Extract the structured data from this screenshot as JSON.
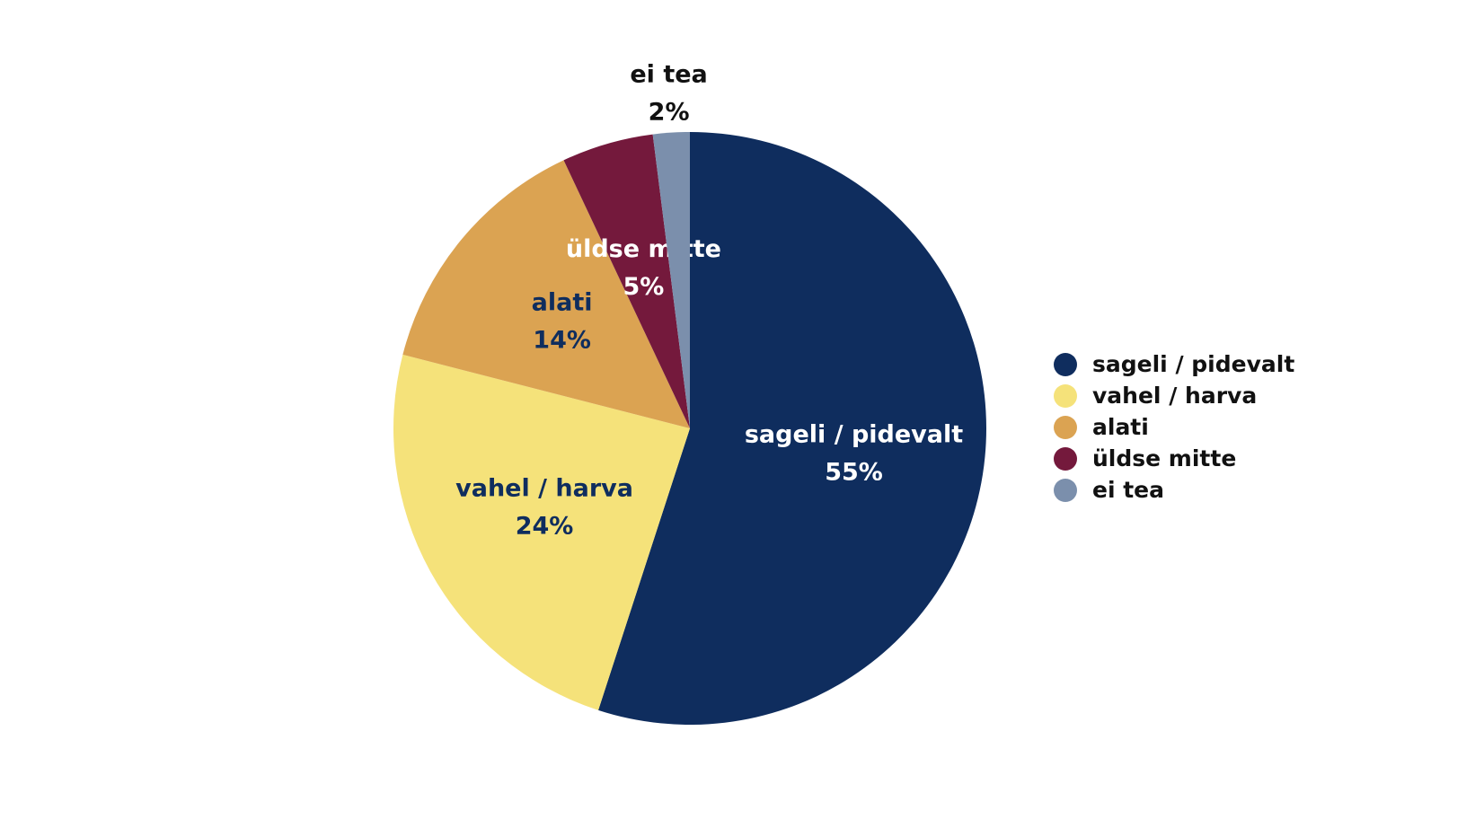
{
  "chart_data": {
    "type": "pie",
    "categories": [
      "sageli / pidevalt",
      "vahel / harva",
      "alati",
      "üldse mitte",
      "ei tea"
    ],
    "values": [
      55,
      24,
      14,
      5,
      2
    ],
    "value_labels": [
      "55%",
      "24%",
      "14%",
      "5%",
      "2%"
    ],
    "colors": [
      "#0f2d5e",
      "#f5e27a",
      "#dba352",
      "#74193c",
      "#7b8fac"
    ],
    "legend": "right"
  }
}
